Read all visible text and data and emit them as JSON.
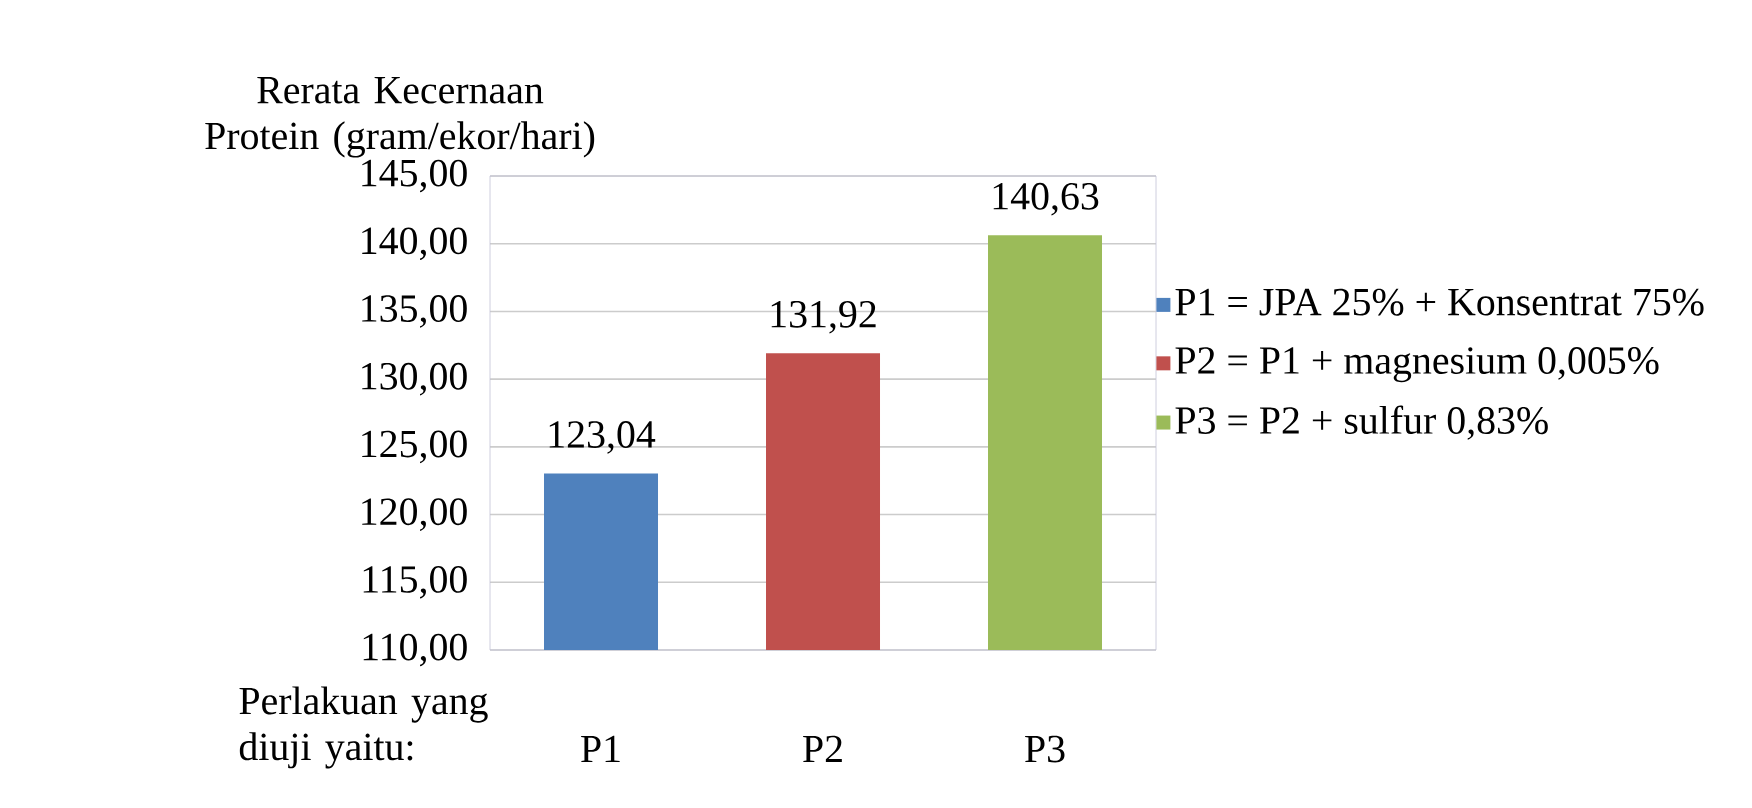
{
  "chart_data": {
    "type": "bar",
    "ylabel": "Rerata Kecernaan Protein (gram/ekor/hari)",
    "xlabel": "Perlakuan yang diuji yaitu:",
    "categories": [
      "P1",
      "P2",
      "P3"
    ],
    "series": [
      {
        "name": "P1 = JPA 25% + Konsentrat 75%",
        "color": "#4f81bd",
        "values": [
          123.04,
          null,
          null
        ],
        "value_labels": [
          "123,04",
          null,
          null
        ]
      },
      {
        "name": "P2 = P1 + magnesium 0,005%",
        "color": "#c0504d",
        "values": [
          null,
          131.92,
          null
        ],
        "value_labels": [
          null,
          "131,92",
          null
        ]
      },
      {
        "name": "P3 = P2 + sulfur 0,83%",
        "color": "#9bbb59",
        "values": [
          null,
          null,
          140.63
        ],
        "value_labels": [
          null,
          null,
          "140,63"
        ]
      }
    ],
    "ylim": [
      110,
      145
    ],
    "yticks": [
      {
        "value": 110,
        "label": "110,00"
      },
      {
        "value": 115,
        "label": "115,00"
      },
      {
        "value": 120,
        "label": "120,00"
      },
      {
        "value": 125,
        "label": "125,00"
      },
      {
        "value": 130,
        "label": "130,00"
      },
      {
        "value": 135,
        "label": "135,00"
      },
      {
        "value": 140,
        "label": "140,00"
      },
      {
        "value": 145,
        "label": "145,00"
      }
    ],
    "grid": "y",
    "legend": "right"
  }
}
